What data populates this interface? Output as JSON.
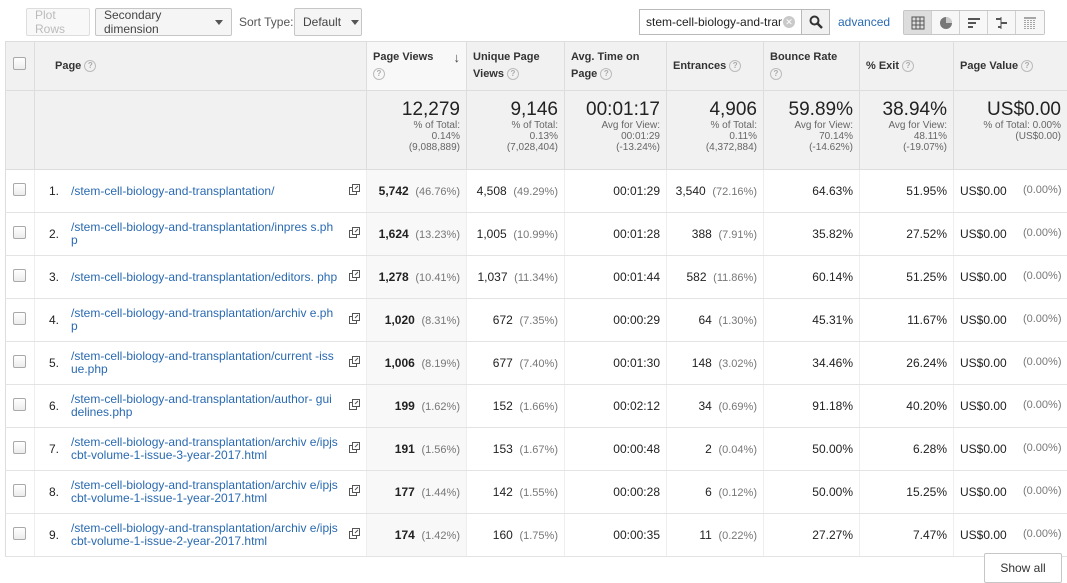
{
  "toolbar": {
    "plot_rows": "Plot Rows",
    "secondary_dimension": "Secondary dimension",
    "sort_type_label": "Sort Type:",
    "sort_type_value": "Default",
    "search_value": "stem-cell-biology-and-tran",
    "advanced": "advanced"
  },
  "columns": {
    "page": "Page",
    "page_views": "Page Views",
    "unique_page_views_1": "Unique Page",
    "unique_page_views_2": "Views",
    "avg_time_1": "Avg. Time on",
    "avg_time_2": "Page",
    "entrances": "Entrances",
    "bounce_rate": "Bounce Rate",
    "exit": "% Exit",
    "page_value": "Page Value"
  },
  "totals": {
    "page_views": {
      "value": "12,279",
      "l1": "% of Total:",
      "l2": "0.14%",
      "l3": "(9,088,889)"
    },
    "unique_page_views": {
      "value": "9,146",
      "l1": "% of Total:",
      "l2": "0.13%",
      "l3": "(7,028,404)"
    },
    "avg_time": {
      "value": "00:01:17",
      "l1": "Avg for View:",
      "l2": "00:01:29",
      "l3": "(-13.24%)"
    },
    "entrances": {
      "value": "4,906",
      "l1": "% of Total:",
      "l2": "0.11%",
      "l3": "(4,372,884)"
    },
    "bounce_rate": {
      "value": "59.89%",
      "l1": "Avg for View:",
      "l2": "70.14%",
      "l3": "(-14.62%)"
    },
    "exit": {
      "value": "38.94%",
      "l1": "Avg for View:",
      "l2": "48.11%",
      "l3": "(-19.07%)"
    },
    "page_value": {
      "value": "US$0.00",
      "l1": "% of Total: 0.00%",
      "l2": "(US$0.00)",
      "l3": ""
    }
  },
  "rows": [
    {
      "num": "1.",
      "page": "/stem-cell-biology-and-transplantation/",
      "pv": "5,742",
      "pv_pct": "(46.76%)",
      "upv": "4,508",
      "upv_pct": "(49.29%)",
      "time": "00:01:29",
      "ent": "3,540",
      "ent_pct": "(72.16%)",
      "bounce": "64.63%",
      "exit": "51.95%",
      "val": "US$0.00",
      "val_pct": "(0.00%)"
    },
    {
      "num": "2.",
      "page": "/stem-cell-biology-and-transplantation/inpres s.php",
      "pv": "1,624",
      "pv_pct": "(13.23%)",
      "upv": "1,005",
      "upv_pct": "(10.99%)",
      "time": "00:01:28",
      "ent": "388",
      "ent_pct": "(7.91%)",
      "bounce": "35.82%",
      "exit": "27.52%",
      "val": "US$0.00",
      "val_pct": "(0.00%)"
    },
    {
      "num": "3.",
      "page": "/stem-cell-biology-and-transplantation/editors. php",
      "pv": "1,278",
      "pv_pct": "(10.41%)",
      "upv": "1,037",
      "upv_pct": "(11.34%)",
      "time": "00:01:44",
      "ent": "582",
      "ent_pct": "(11.86%)",
      "bounce": "60.14%",
      "exit": "51.25%",
      "val": "US$0.00",
      "val_pct": "(0.00%)"
    },
    {
      "num": "4.",
      "page": "/stem-cell-biology-and-transplantation/archiv e.php",
      "pv": "1,020",
      "pv_pct": "(8.31%)",
      "upv": "672",
      "upv_pct": "(7.35%)",
      "time": "00:00:29",
      "ent": "64",
      "ent_pct": "(1.30%)",
      "bounce": "45.31%",
      "exit": "11.67%",
      "val": "US$0.00",
      "val_pct": "(0.00%)"
    },
    {
      "num": "5.",
      "page": "/stem-cell-biology-and-transplantation/current -issue.php",
      "pv": "1,006",
      "pv_pct": "(8.19%)",
      "upv": "677",
      "upv_pct": "(7.40%)",
      "time": "00:01:30",
      "ent": "148",
      "ent_pct": "(3.02%)",
      "bounce": "34.46%",
      "exit": "26.24%",
      "val": "US$0.00",
      "val_pct": "(0.00%)"
    },
    {
      "num": "6.",
      "page": "/stem-cell-biology-and-transplantation/author- guidelines.php",
      "pv": "199",
      "pv_pct": "(1.62%)",
      "upv": "152",
      "upv_pct": "(1.66%)",
      "time": "00:02:12",
      "ent": "34",
      "ent_pct": "(0.69%)",
      "bounce": "91.18%",
      "exit": "40.20%",
      "val": "US$0.00",
      "val_pct": "(0.00%)"
    },
    {
      "num": "7.",
      "page": "/stem-cell-biology-and-transplantation/archiv e/ipjscbt-volume-1-issue-3-year-2017.html",
      "pv": "191",
      "pv_pct": "(1.56%)",
      "upv": "153",
      "upv_pct": "(1.67%)",
      "time": "00:00:48",
      "ent": "2",
      "ent_pct": "(0.04%)",
      "bounce": "50.00%",
      "exit": "6.28%",
      "val": "US$0.00",
      "val_pct": "(0.00%)"
    },
    {
      "num": "8.",
      "page": "/stem-cell-biology-and-transplantation/archiv e/ipjscbt-volume-1-issue-1-year-2017.html",
      "pv": "177",
      "pv_pct": "(1.44%)",
      "upv": "142",
      "upv_pct": "(1.55%)",
      "time": "00:00:28",
      "ent": "6",
      "ent_pct": "(0.12%)",
      "bounce": "50.00%",
      "exit": "15.25%",
      "val": "US$0.00",
      "val_pct": "(0.00%)"
    },
    {
      "num": "9.",
      "page": "/stem-cell-biology-and-transplantation/archiv e/ipjscbt-volume-1-issue-2-year-2017.html",
      "pv": "174",
      "pv_pct": "(1.42%)",
      "upv": "160",
      "upv_pct": "(1.75%)",
      "time": "00:00:35",
      "ent": "11",
      "ent_pct": "(0.22%)",
      "bounce": "27.27%",
      "exit": "7.47%",
      "val": "US$0.00",
      "val_pct": "(0.00%)"
    }
  ],
  "footer": {
    "show_all": "Show all"
  }
}
